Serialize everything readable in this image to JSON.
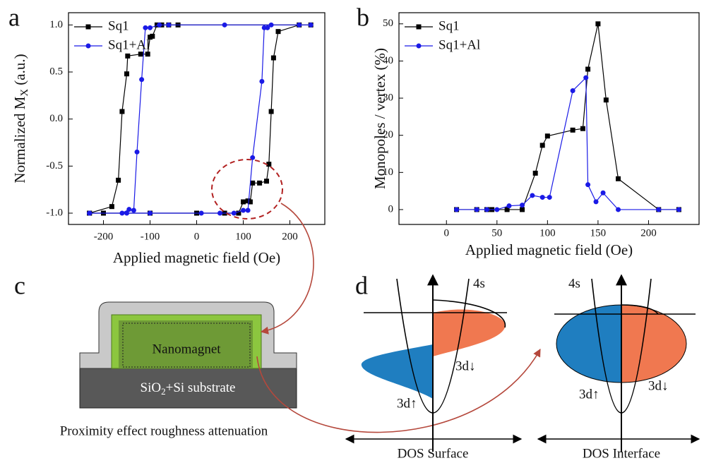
{
  "chart_data": [
    {
      "type": "line",
      "panel": "a",
      "x_label": "Applied magnetic field (Oe)",
      "y_label": "Normalized M",
      "y_label_subscript": "X",
      "y_label_suffix": "(a.u.)",
      "xlim": [
        -275,
        275
      ],
      "xticks": [
        -200,
        -100,
        0,
        100,
        200
      ],
      "ylim": [
        -1.12,
        1.13
      ],
      "yticks": [
        {
          "value": -1,
          "label": "-1.0"
        },
        -0.5,
        {
          "value": 0,
          "label": "0.0"
        },
        0.5,
        {
          "value": 1,
          "label": "1.0"
        }
      ],
      "legend": "upper left",
      "series": [
        {
          "name": "Sq1",
          "color": "#000000",
          "marker": "square",
          "x": [
            -230,
            -200,
            -100,
            0,
            60,
            90,
            100,
            110,
            115,
            120,
            135,
            150,
            155,
            160,
            165,
            175,
            220,
            245,
            -40,
            -60,
            -75,
            -85,
            -95,
            -100,
            -105,
            -120,
            -148,
            -150,
            -160,
            -168,
            -182,
            -230
          ],
          "values": [
            -1,
            -1,
            -1,
            -1,
            -1,
            -1,
            -0.88,
            -0.87,
            -0.88,
            -0.68,
            -0.68,
            -0.66,
            -0.48,
            0.08,
            0.65,
            0.93,
            1,
            1,
            1,
            1,
            1,
            1,
            0.88,
            0.87,
            0.69,
            0.69,
            0.67,
            0.48,
            0.08,
            -0.65,
            -0.93,
            -1
          ]
        },
        {
          "name": "Sq1+Al",
          "color": "#1a1ae6",
          "marker": "circle",
          "x": [
            -230,
            -150,
            -100,
            10,
            50,
            80,
            100,
            110,
            120,
            140,
            145,
            152,
            160,
            220,
            245,
            60,
            -60,
            -80,
            -100,
            -110,
            -118,
            -128,
            -135,
            -145,
            -160,
            -230
          ],
          "values": [
            -1,
            -1,
            -1,
            -1,
            -1,
            -1,
            -0.97,
            -0.97,
            -0.41,
            0.4,
            0.97,
            0.97,
            1,
            1,
            1,
            1,
            1,
            1,
            0.97,
            0.97,
            0.42,
            -0.35,
            -0.97,
            -0.96,
            -1,
            -1
          ]
        }
      ]
    },
    {
      "type": "line",
      "panel": "b",
      "x_label": "Applied magnetic field (Oe)",
      "y_label": "Monopoles / vertex (%)",
      "xlim": [
        -47,
        250
      ],
      "xticks": [
        0,
        50,
        100,
        150,
        200
      ],
      "ylim": [
        -4,
        53
      ],
      "yticks": [
        0,
        10,
        20,
        30,
        40,
        50
      ],
      "legend": "upper left",
      "series": [
        {
          "name": "Sq1",
          "color": "#000000",
          "marker": "square",
          "x": [
            10,
            30,
            40,
            45,
            60,
            75,
            88,
            95,
            100,
            125,
            135,
            140,
            150,
            158,
            170,
            210,
            230
          ],
          "values": [
            0,
            0,
            0,
            0,
            0,
            0,
            9.8,
            17.3,
            19.8,
            21.4,
            21.8,
            37.8,
            50,
            29.5,
            8.3,
            0,
            0
          ]
        },
        {
          "name": "Sq1+Al",
          "color": "#1a1ae6",
          "marker": "circle",
          "x": [
            10,
            30,
            40,
            50,
            62,
            75,
            85,
            95,
            102,
            125,
            138,
            140,
            148,
            155,
            170,
            210,
            230
          ],
          "values": [
            0,
            0,
            0,
            0,
            1,
            1.2,
            3.8,
            3.3,
            3.3,
            32,
            35.5,
            6.7,
            2.1,
            4.5,
            0,
            0,
            0
          ]
        }
      ]
    }
  ],
  "panel_c": {
    "panel": "c",
    "nanomagnet": "Nanomagnet",
    "substrate_label": "SiO",
    "substrate_subscript": "2",
    "substrate_suffix": "+Si substrate",
    "caption": "Proximity effect roughness attenuation"
  },
  "panel_d": {
    "panel": "d",
    "surface": {
      "band_4s": "4s",
      "spin_down": "3d↓",
      "spin_up": "3d↑",
      "axis_label": "DOS Surface"
    },
    "interface": {
      "band_4s": "4s",
      "spin_up": "3d↑",
      "spin_down": "3d↓",
      "axis_label": "DOS Interface"
    }
  }
}
